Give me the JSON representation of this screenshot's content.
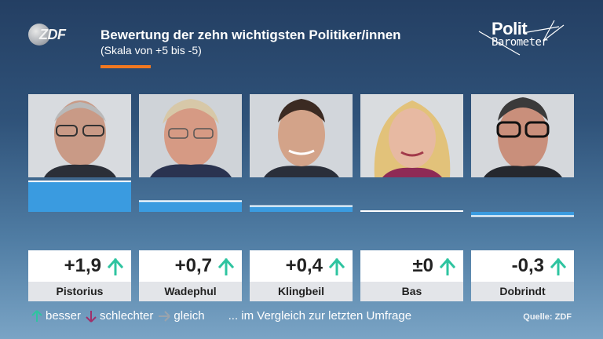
{
  "header": {
    "brand": "ZDF",
    "title": "Bewertung der zehn wichtigsten Politiker/innen",
    "subtitle": "(Skala von +5 bis -5)",
    "polit_line1": "Polit",
    "polit_line2": "Barometer"
  },
  "colors": {
    "bar": "#3a9be0",
    "bar_edge": "#ffffff",
    "accent": "#f07820",
    "up_arrow": "#2ec4a0",
    "down_arrow": "#a0306a",
    "same_arrow": "#9aa3ad"
  },
  "chart_data": {
    "type": "bar",
    "title": "Bewertung der zehn wichtigsten Politiker/innen",
    "subtitle": "(Skala von +5 bis -5)",
    "categories": [
      "Pistorius",
      "Wadephul",
      "Klingbeil",
      "Bas",
      "Dobrindt"
    ],
    "values": [
      1.9,
      0.7,
      0.4,
      0,
      -0.3
    ],
    "value_labels": [
      "+1,9",
      "+0,7",
      "+0,4",
      "±0",
      "-0,3"
    ],
    "trend": [
      "up",
      "up",
      "up",
      "up",
      "up"
    ],
    "ylim": [
      -5,
      5
    ]
  },
  "photos": [
    {
      "alt": "Pistorius",
      "icon": "person-photo"
    },
    {
      "alt": "Wadephul",
      "icon": "person-photo"
    },
    {
      "alt": "Klingbeil",
      "icon": "person-photo"
    },
    {
      "alt": "Bas",
      "icon": "person-photo"
    },
    {
      "alt": "Dobrindt",
      "icon": "person-photo"
    }
  ],
  "legend": {
    "better": "besser",
    "worse": "schlechter",
    "same": "gleich",
    "note": "... im Vergleich zur letzten Umfrage"
  },
  "source": "Quelle: ZDF"
}
